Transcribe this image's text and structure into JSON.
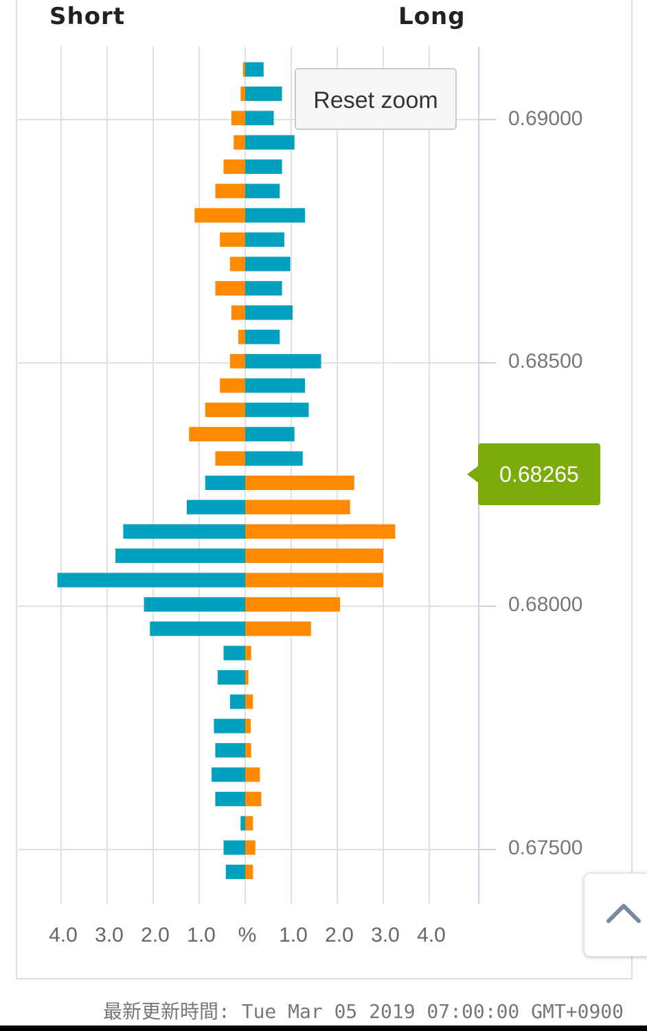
{
  "header": {
    "short_label": "Short",
    "long_label": "Long"
  },
  "reset_zoom_label": "Reset zoom",
  "current_price": "0.68265",
  "updated_text": "最新更新時間: Tue Mar 05 2019 07:00:00 GMT+0900",
  "colors": {
    "blue": "#00a0bf",
    "orange": "#ff8a00",
    "current_line": "#7cab0c",
    "grid": "#e0e0e0",
    "axis": "#c9d3e6"
  },
  "chart_data": {
    "type": "bar",
    "title": "",
    "orientation": "horizontal-butterfly",
    "price_ticks": [
      "0.69000",
      "0.68500",
      "0.68000",
      "0.67500"
    ],
    "pct_ticks_left": [
      "4.0",
      "3.0",
      "2.0",
      "1.0"
    ],
    "pct_center_label": "%",
    "pct_ticks_right": [
      "1.0",
      "2.0",
      "3.0",
      "4.0"
    ],
    "current_price": 0.68265,
    "price_step": 0.0005,
    "rows": [
      {
        "left": 0.05,
        "left_color": "orange",
        "right": 0.4,
        "right_color": "blue"
      },
      {
        "left": 0.1,
        "left_color": "orange",
        "right": 0.8,
        "right_color": "blue"
      },
      {
        "left": 0.3,
        "left_color": "orange",
        "right": 0.62,
        "right_color": "blue"
      },
      {
        "left": 0.25,
        "left_color": "orange",
        "right": 1.07,
        "right_color": "blue"
      },
      {
        "left": 0.47,
        "left_color": "orange",
        "right": 0.8,
        "right_color": "blue"
      },
      {
        "left": 0.65,
        "left_color": "orange",
        "right": 0.75,
        "right_color": "blue"
      },
      {
        "left": 1.1,
        "left_color": "orange",
        "right": 1.3,
        "right_color": "blue"
      },
      {
        "left": 0.55,
        "left_color": "orange",
        "right": 0.85,
        "right_color": "blue"
      },
      {
        "left": 0.33,
        "left_color": "orange",
        "right": 0.98,
        "right_color": "blue"
      },
      {
        "left": 0.65,
        "left_color": "orange",
        "right": 0.8,
        "right_color": "blue"
      },
      {
        "left": 0.3,
        "left_color": "orange",
        "right": 1.03,
        "right_color": "blue"
      },
      {
        "left": 0.15,
        "left_color": "orange",
        "right": 0.75,
        "right_color": "blue"
      },
      {
        "left": 0.33,
        "left_color": "orange",
        "right": 1.65,
        "right_color": "blue"
      },
      {
        "left": 0.55,
        "left_color": "orange",
        "right": 1.3,
        "right_color": "blue"
      },
      {
        "left": 0.87,
        "left_color": "orange",
        "right": 1.38,
        "right_color": "blue"
      },
      {
        "left": 1.22,
        "left_color": "orange",
        "right": 1.07,
        "right_color": "blue"
      },
      {
        "left": 0.65,
        "left_color": "orange",
        "right": 1.25,
        "right_color": "blue"
      },
      {
        "left": 0.87,
        "left_color": "blue",
        "right": 2.37,
        "right_color": "orange"
      },
      {
        "left": 1.27,
        "left_color": "blue",
        "right": 2.28,
        "right_color": "orange"
      },
      {
        "left": 2.65,
        "left_color": "blue",
        "right": 3.26,
        "right_color": "orange"
      },
      {
        "left": 2.82,
        "left_color": "blue",
        "right": 3.0,
        "right_color": "orange"
      },
      {
        "left": 4.08,
        "left_color": "blue",
        "right": 3.0,
        "right_color": "orange"
      },
      {
        "left": 2.2,
        "left_color": "blue",
        "right": 2.06,
        "right_color": "orange"
      },
      {
        "left": 2.07,
        "left_color": "blue",
        "right": 1.43,
        "right_color": "orange"
      },
      {
        "left": 0.47,
        "left_color": "blue",
        "right": 0.13,
        "right_color": "orange"
      },
      {
        "left": 0.6,
        "left_color": "blue",
        "right": 0.07,
        "right_color": "orange"
      },
      {
        "left": 0.33,
        "left_color": "blue",
        "right": 0.17,
        "right_color": "orange"
      },
      {
        "left": 0.68,
        "left_color": "blue",
        "right": 0.12,
        "right_color": "orange"
      },
      {
        "left": 0.65,
        "left_color": "blue",
        "right": 0.13,
        "right_color": "orange"
      },
      {
        "left": 0.73,
        "left_color": "blue",
        "right": 0.32,
        "right_color": "orange"
      },
      {
        "left": 0.65,
        "left_color": "blue",
        "right": 0.35,
        "right_color": "orange"
      },
      {
        "left": 0.1,
        "left_color": "blue",
        "right": 0.17,
        "right_color": "orange"
      },
      {
        "left": 0.47,
        "left_color": "blue",
        "right": 0.22,
        "right_color": "orange"
      },
      {
        "left": 0.42,
        "left_color": "blue",
        "right": 0.17,
        "right_color": "orange"
      }
    ]
  }
}
